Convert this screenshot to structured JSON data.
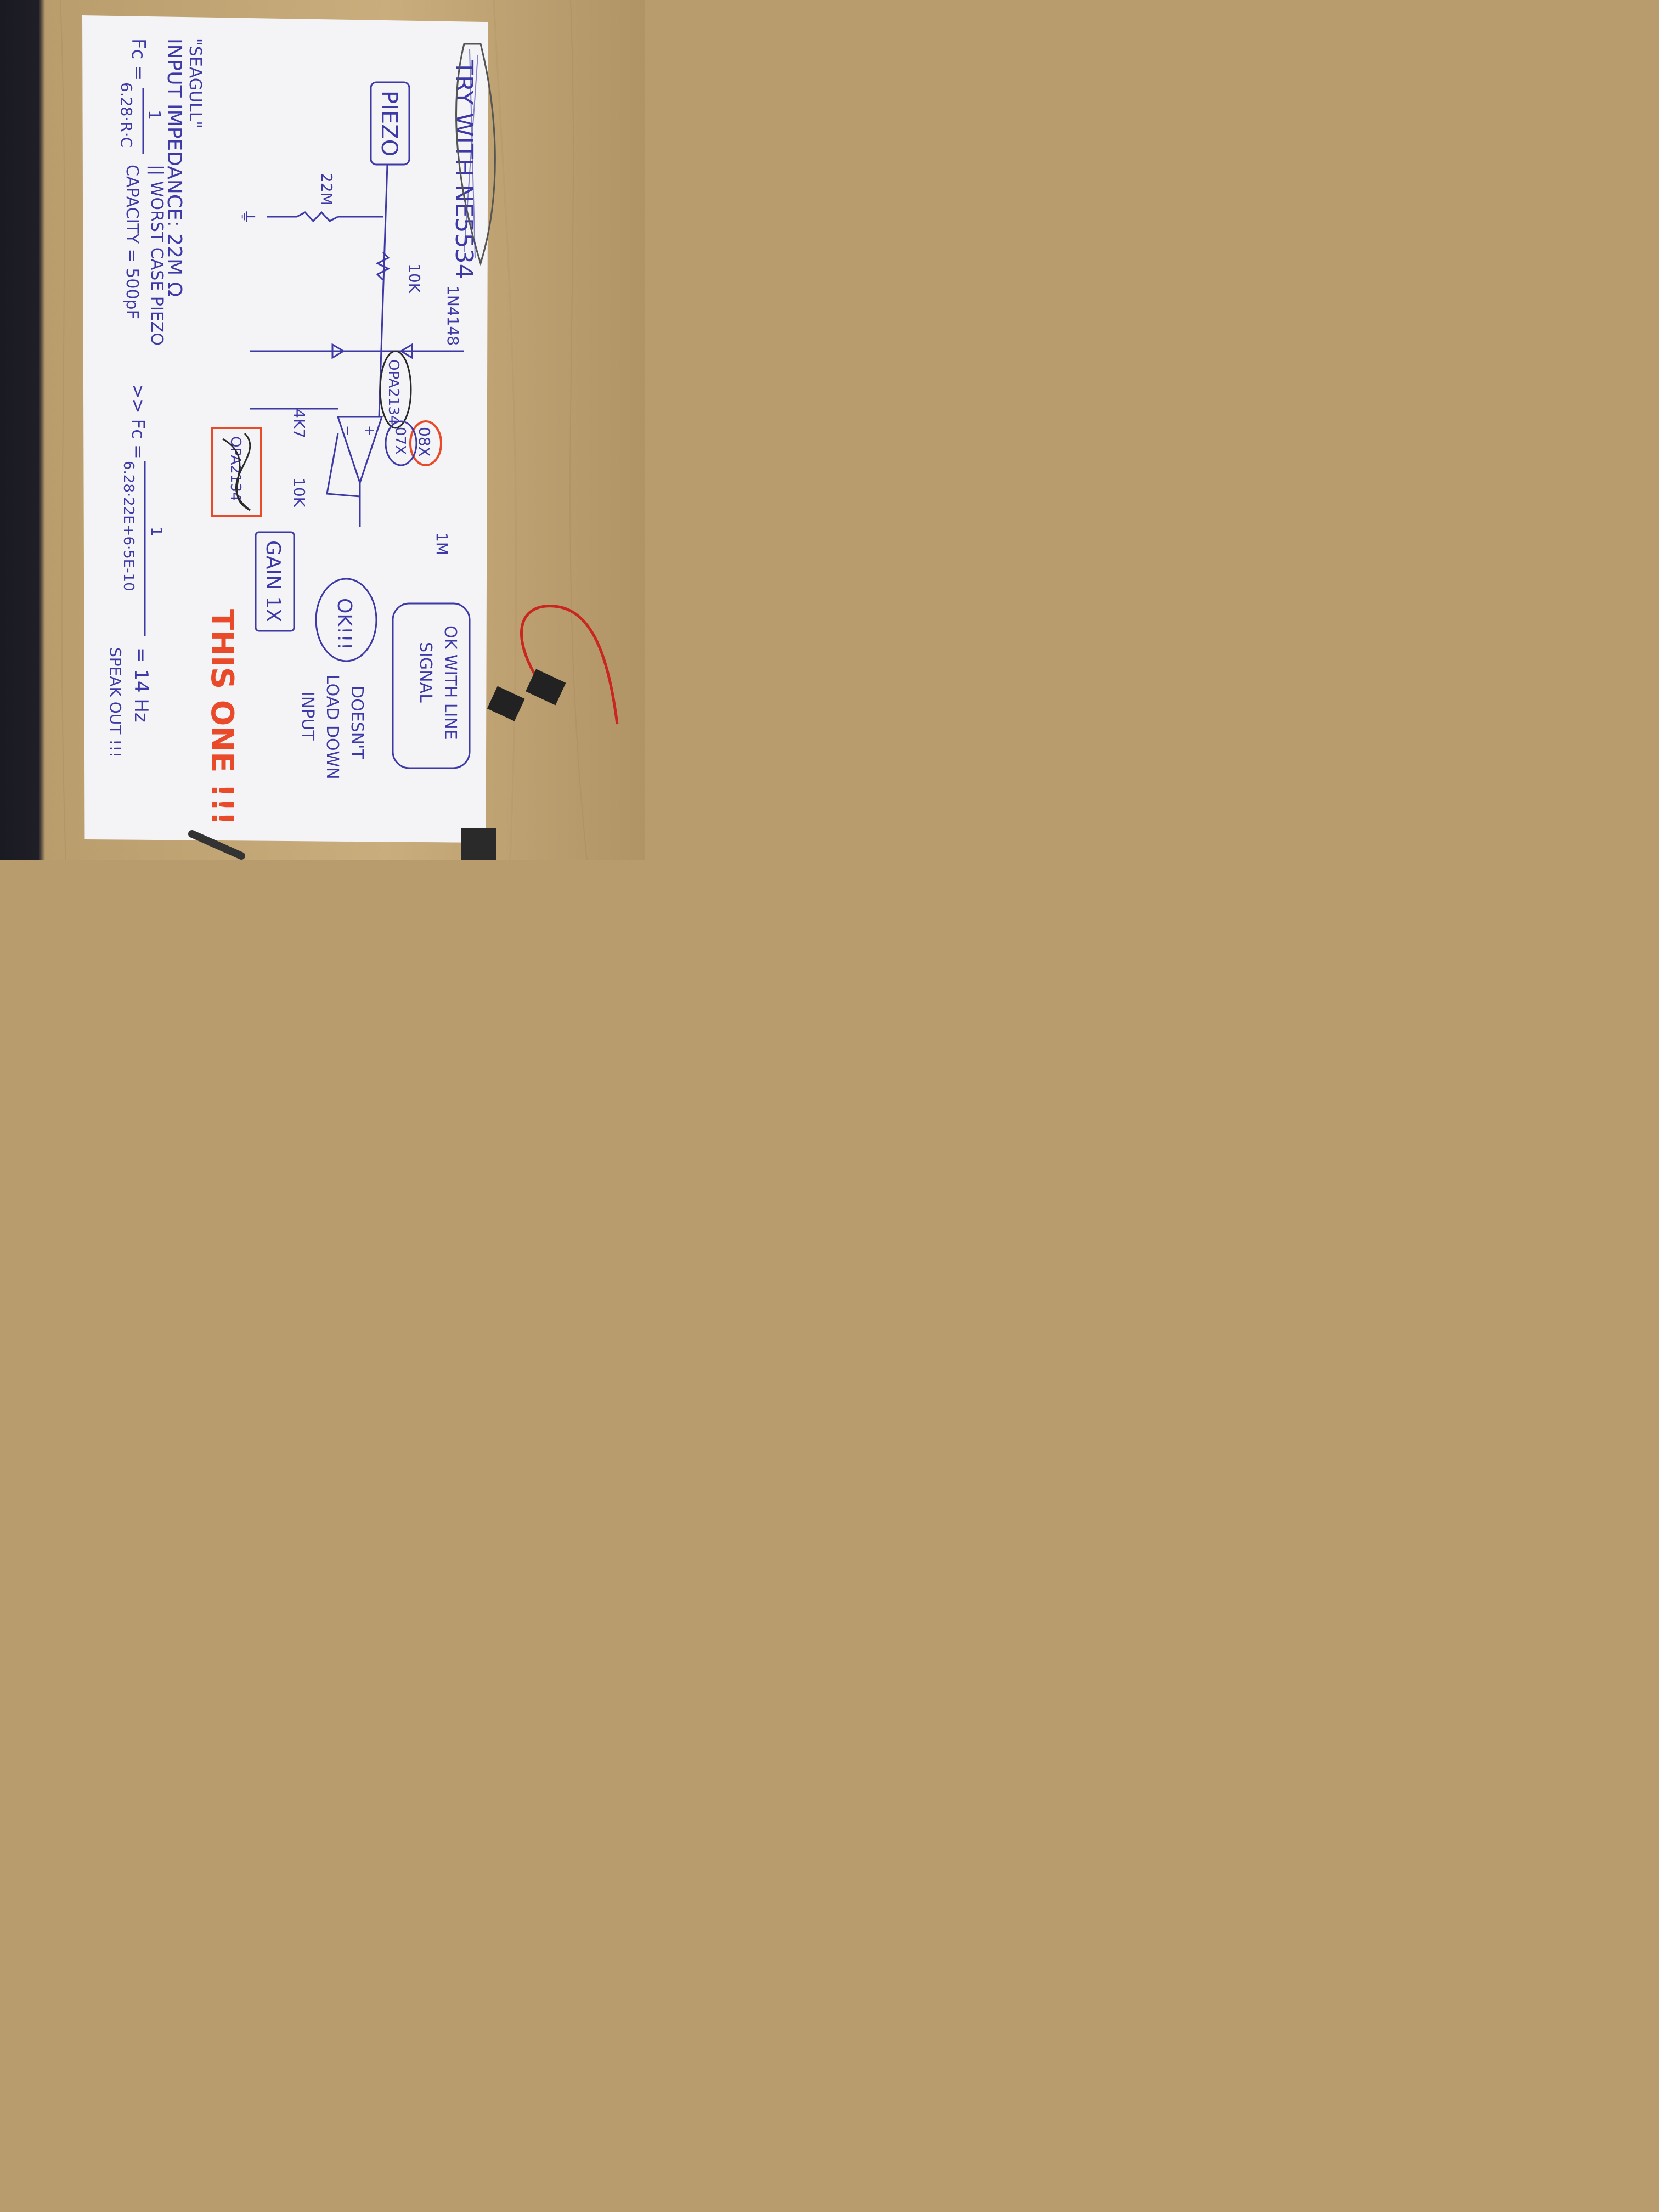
{
  "note": {
    "crossed_header": "TRY WITH NE5534",
    "source_label": "PIEZO",
    "input_resistor": "22M",
    "series_resistor": "10K",
    "diode_label": "1N4148",
    "opamp_label": "OPA2134",
    "gain_resistor": "4K7",
    "feedback_resistor": "10K",
    "output_resistor": "1M",
    "option_a": "08X",
    "option_b": "07X",
    "crossed_opamp": "OPA2134",
    "gain_box": "GAIN 1X",
    "ok_circle": "OK!!!",
    "ok_box_line1": "OK WITH LINE",
    "ok_box_line2": "SIGNAL",
    "doesnt_line1": "DOESN'T",
    "doesnt_line2": "LOAD DOWN",
    "doesnt_line3": "INPUT",
    "this_one": "THIS ONE !!!",
    "seagull": "\"SEAGULL\"",
    "input_impedance": "INPUT IMPEDANCE: 22M Ω",
    "worst_case": "|| WORST CASE PIEZO",
    "capacity": "CAPACITY = 500pF",
    "fc_formula_lhs": "Fc =",
    "fc_formula_num": "1",
    "fc_formula_den": "6.28·R·C",
    "fc_calc_lhs": ">> Fc =",
    "fc_calc_num": "1",
    "fc_calc_den": "6.28·22E+6·5E-10",
    "fc_result": "= 14 Hz",
    "fc_result_note": "SPEAK OUT !!!"
  },
  "colors": {
    "ink_blue": "#3d3aa8",
    "ink_red": "#e84a2a",
    "ink_black": "#2b2b2b",
    "paper": "#f4f3f6",
    "desk": "#b89c6e"
  }
}
